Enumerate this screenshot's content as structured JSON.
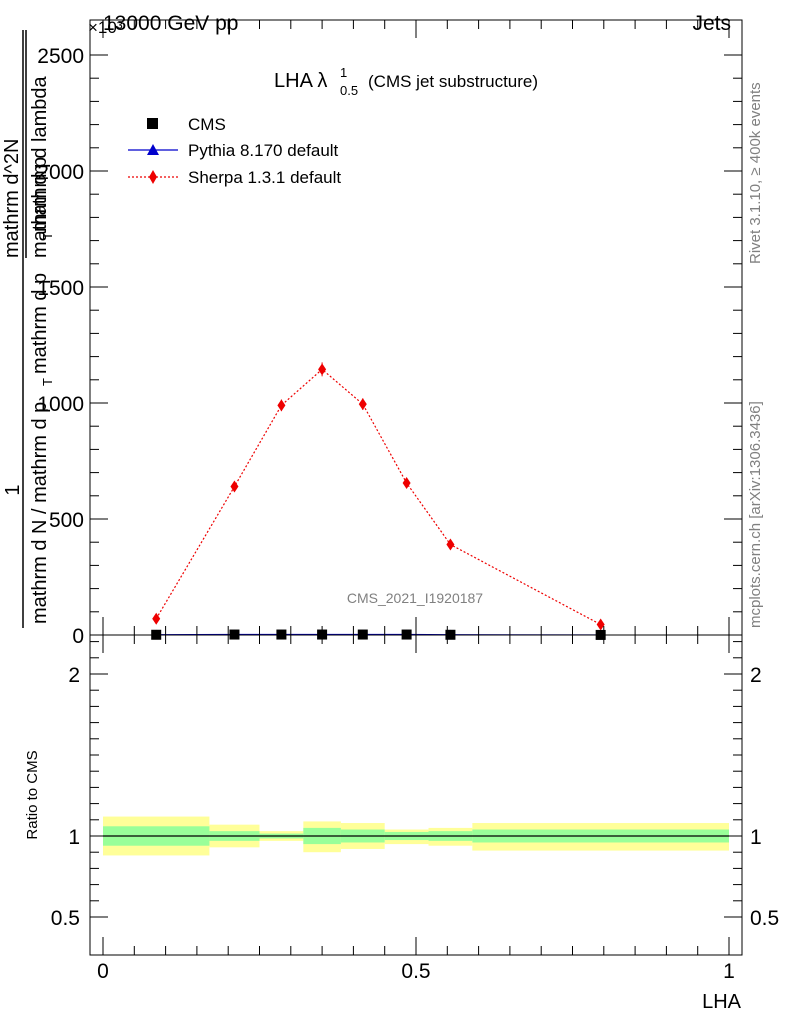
{
  "header": {
    "left": "13000 GeV pp",
    "right": "Jets"
  },
  "side_text": {
    "rivet": "Rivet 3.1.10, ≥ 400k events",
    "mcplots": "mcplots.cern.ch [arXiv:1306.3436]"
  },
  "analysis_tag": "CMS_2021_I1920187",
  "ratio_label": "Ratio to CMS",
  "main_ylabel": {
    "numerator": "1",
    "fraction_bar_text": "mathrm d N / mathrm d p_T mathrm d p_T mathrm d lambda",
    "part_a": "mathrm d N / mathrm d p",
    "part_b": "mathrm d p",
    "part_c": "mathrm d lambda",
    "mathrmdN": "mathrm d^2N",
    "T": "T",
    "exp": "×10³"
  },
  "colors": {
    "cms": "#000000",
    "pythia": "#0000cc",
    "sherpa": "#ee0000",
    "band_inner": "#99ff99",
    "band_outer": "#ffff99"
  },
  "chart_data": [
    {
      "type": "line",
      "title": "LHA λ¹₀.₅ (CMS jet substructure)",
      "title_main": "LHA λ",
      "title_sup": "1",
      "title_sub": "0.5",
      "title_rest": "(CMS jet substructure)",
      "xlabel": "LHA",
      "xlim": [
        0,
        1
      ],
      "ylim": [
        0,
        2600
      ],
      "y_ticks": [
        0,
        500,
        1000,
        1500,
        2000,
        2500
      ],
      "y_tick_labels": [
        "0",
        "500",
        "1000",
        "1500",
        "2000",
        "2500"
      ],
      "x_ticks": [
        0,
        0.5,
        1
      ],
      "x_tick_labels": [
        "0",
        "0.5",
        "1"
      ],
      "legend_position": "top-left",
      "series": [
        {
          "name": "CMS",
          "marker": "square",
          "x": [
            0.085,
            0.21,
            0.285,
            0.35,
            0.415,
            0.485,
            0.555,
            0.795
          ],
          "y": [
            1,
            2,
            2,
            2,
            2,
            2,
            1,
            0.3
          ]
        },
        {
          "name": "Pythia 8.170 default",
          "marker": "triangle",
          "x": [
            0.085,
            0.21,
            0.285,
            0.35,
            0.415,
            0.485,
            0.555,
            0.795
          ],
          "y": [
            1,
            2,
            2,
            2,
            2,
            2,
            1,
            0.3
          ]
        },
        {
          "name": "Sherpa 1.3.1 default",
          "marker": "diamond",
          "x": [
            0.085,
            0.21,
            0.285,
            0.35,
            0.415,
            0.485,
            0.555,
            0.795
          ],
          "y": [
            70,
            640,
            990,
            1145,
            995,
            655,
            390,
            45
          ],
          "yerr": [
            8,
            20,
            25,
            30,
            25,
            20,
            12,
            6
          ]
        }
      ]
    },
    {
      "type": "area",
      "ylabel": "Ratio to CMS",
      "xlim": [
        0,
        1
      ],
      "ylim": [
        0.35,
        2.25
      ],
      "y_ticks": [
        0.5,
        1,
        2
      ],
      "y_tick_labels": [
        "0.5",
        "1",
        "2"
      ],
      "reference_line": 1,
      "bins": [
        {
          "x_lo": 0.0,
          "x_hi": 0.17,
          "inner_lo": 0.94,
          "inner_hi": 1.06,
          "outer_lo": 0.88,
          "outer_hi": 1.12
        },
        {
          "x_lo": 0.17,
          "x_hi": 0.25,
          "inner_lo": 0.97,
          "inner_hi": 1.03,
          "outer_lo": 0.93,
          "outer_hi": 1.07
        },
        {
          "x_lo": 0.25,
          "x_hi": 0.32,
          "inner_lo": 0.985,
          "inner_hi": 1.015,
          "outer_lo": 0.97,
          "outer_hi": 1.03
        },
        {
          "x_lo": 0.32,
          "x_hi": 0.38,
          "inner_lo": 0.95,
          "inner_hi": 1.05,
          "outer_lo": 0.9,
          "outer_hi": 1.09
        },
        {
          "x_lo": 0.38,
          "x_hi": 0.45,
          "inner_lo": 0.96,
          "inner_hi": 1.04,
          "outer_lo": 0.92,
          "outer_hi": 1.08
        },
        {
          "x_lo": 0.45,
          "x_hi": 0.52,
          "inner_lo": 0.975,
          "inner_hi": 1.025,
          "outer_lo": 0.95,
          "outer_hi": 1.04
        },
        {
          "x_lo": 0.52,
          "x_hi": 0.59,
          "inner_lo": 0.97,
          "inner_hi": 1.03,
          "outer_lo": 0.94,
          "outer_hi": 1.05
        },
        {
          "x_lo": 0.59,
          "x_hi": 1.0,
          "inner_lo": 0.96,
          "inner_hi": 1.04,
          "outer_lo": 0.91,
          "outer_hi": 1.08
        }
      ]
    }
  ]
}
